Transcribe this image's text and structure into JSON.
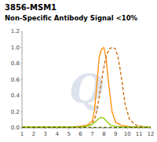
{
  "chart_data": {
    "type": "line",
    "title": "3856-MSM1",
    "subtitle": "Non-Specific Antibody Signal <10%",
    "annotations": [
      "Q"
    ],
    "xlim": [
      1,
      12
    ],
    "ylim": [
      0,
      1.2
    ],
    "xticks": [
      1,
      2,
      3,
      4,
      5,
      6,
      7,
      8,
      9,
      10,
      11,
      12
    ],
    "yticks": [
      {
        "value": 0,
        "label": "0.0"
      },
      0.2,
      0.4,
      0.6,
      0.8,
      {
        "value": 1.0,
        "label": "1.0"
      },
      1.2
    ],
    "grid": false,
    "series": [
      {
        "color": "#FF8C00",
        "line_style": "solid",
        "x": [
          1,
          2,
          3,
          4,
          5,
          6,
          6.5,
          7,
          7.2,
          7.4,
          7.6,
          7.8,
          8.0,
          8.2,
          8.4,
          8.7,
          9.0,
          9.5,
          10,
          10.5,
          11,
          12
        ],
        "values": [
          0.01,
          0.01,
          0.01,
          0.01,
          0.01,
          0.02,
          0.03,
          0.08,
          0.22,
          0.55,
          0.88,
          0.98,
          1.0,
          0.85,
          0.55,
          0.2,
          0.07,
          0.03,
          0.02,
          0.01,
          0.01,
          0.01
        ]
      },
      {
        "color": "#CC6600",
        "line_style": "dashed",
        "x": [
          1,
          2,
          3,
          4,
          5,
          6,
          6.5,
          7,
          7.3,
          7.6,
          7.9,
          8.2,
          8.5,
          8.8,
          9.0,
          9.2,
          9.4,
          9.6,
          9.8,
          10.2,
          10.8,
          11.5,
          12
        ],
        "values": [
          0.01,
          0.01,
          0.01,
          0.01,
          0.01,
          0.01,
          0.02,
          0.05,
          0.15,
          0.38,
          0.68,
          0.9,
          0.99,
          1.0,
          0.98,
          0.88,
          0.72,
          0.52,
          0.3,
          0.1,
          0.03,
          0.01,
          0.01
        ]
      },
      {
        "color": "#88CC00",
        "line_style": "solid",
        "x": [
          1,
          2,
          3,
          4,
          5,
          6,
          6.5,
          7,
          7.3,
          7.6,
          7.8,
          8.0,
          8.3,
          8.6,
          9.0,
          9.5,
          10,
          11,
          12
        ],
        "values": [
          0.01,
          0.01,
          0.01,
          0.01,
          0.01,
          0.01,
          0.02,
          0.04,
          0.08,
          0.12,
          0.13,
          0.12,
          0.07,
          0.03,
          0.02,
          0.01,
          0.01,
          0.01,
          0.01
        ]
      },
      {
        "color": "#556600",
        "line_style": "dashed",
        "x": [
          1,
          2,
          3,
          4,
          5,
          6,
          7,
          8,
          9,
          10,
          11,
          12
        ],
        "values": [
          0.005,
          0.005,
          0.005,
          0.005,
          0.005,
          0.005,
          0.005,
          0.005,
          0.005,
          0.005,
          0.005,
          0.005
        ]
      }
    ]
  }
}
